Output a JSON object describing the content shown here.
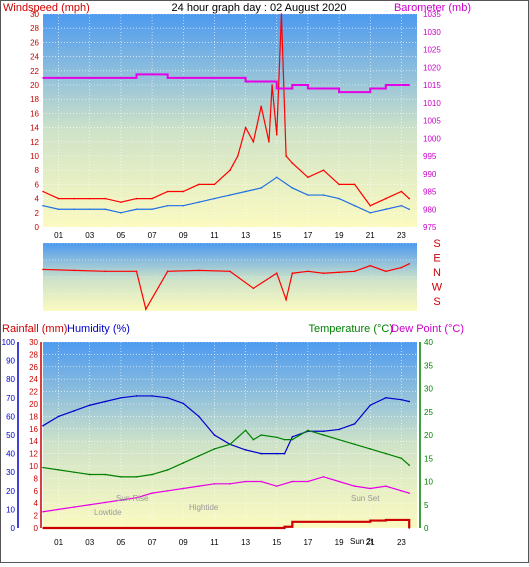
{
  "chart_data": [
    {
      "type": "line",
      "title": "24 hour graph day : 02 August 2020",
      "ylabel_left": "Windspeed (mph)",
      "ylabel_right": "Barometer (mb)",
      "x_ticks": [
        "01",
        "03",
        "05",
        "07",
        "09",
        "11",
        "13",
        "15",
        "17",
        "19",
        "21",
        "23"
      ],
      "xlim": [
        0,
        24
      ],
      "ylim_left": [
        0,
        30
      ],
      "yticks_left": [
        0,
        2,
        4,
        6,
        8,
        10,
        12,
        14,
        16,
        18,
        20,
        22,
        24,
        26,
        28,
        30
      ],
      "ylim_right": [
        975,
        1035
      ],
      "yticks_right": [
        975,
        980,
        985,
        990,
        995,
        1000,
        1005,
        1010,
        1015,
        1020,
        1025,
        1030,
        1035
      ],
      "grid": true,
      "series": [
        {
          "name": "Gust",
          "color": "#ff0000",
          "axis": "left",
          "x": [
            0,
            1,
            2,
            3,
            4,
            5,
            6,
            7,
            8,
            9,
            10,
            11,
            12,
            12.5,
            13,
            13.5,
            14,
            14.5,
            14.7,
            15,
            15.3,
            15.6,
            16,
            17,
            18,
            19,
            20,
            21,
            22,
            23,
            23.5
          ],
          "y": [
            5,
            4,
            4,
            4,
            4,
            3.5,
            4,
            4,
            5,
            5,
            6,
            6,
            8,
            10,
            14,
            12,
            17,
            12,
            20,
            13,
            30,
            10,
            9,
            7,
            8,
            6,
            6,
            3,
            4,
            5,
            4
          ]
        },
        {
          "name": "Average",
          "color": "#1e6fe6",
          "axis": "left",
          "x": [
            0,
            1,
            2,
            3,
            4,
            5,
            6,
            7,
            8,
            9,
            10,
            11,
            12,
            13,
            14,
            15,
            16,
            17,
            18,
            19,
            20,
            21,
            22,
            23,
            23.5
          ],
          "y": [
            3,
            2.5,
            2.5,
            2.5,
            2.5,
            2,
            2.5,
            2.5,
            3,
            3,
            3.5,
            4,
            4.5,
            5,
            5.5,
            7,
            5.5,
            4.5,
            4.5,
            4,
            3,
            2,
            2.5,
            3,
            2.5
          ]
        },
        {
          "name": "Barometer",
          "color": "#e600e6",
          "axis": "right",
          "x": [
            0,
            1,
            2,
            3,
            4,
            5,
            6,
            7,
            8,
            9,
            10,
            11,
            12,
            13,
            14,
            15,
            16,
            17,
            18,
            19,
            20,
            21,
            22,
            23,
            23.5
          ],
          "y": [
            1017,
            1017,
            1017,
            1017,
            1017,
            1017,
            1018,
            1018,
            1017,
            1017,
            1017,
            1017,
            1017,
            1016,
            1016,
            1014,
            1015,
            1014,
            1014,
            1013,
            1013,
            1014,
            1015,
            1015,
            1015
          ]
        }
      ]
    },
    {
      "type": "line",
      "ylabel_right_ticks": [
        "S",
        "E",
        "N",
        "W",
        "S"
      ],
      "xlim": [
        0,
        24
      ],
      "series": [
        {
          "name": "Wind Direction",
          "color": "#ff0000",
          "x": [
            0,
            2,
            4,
            6,
            6.6,
            8,
            10,
            12,
            13.5,
            15,
            15.6,
            16,
            17,
            18,
            19,
            20,
            21,
            22,
            23,
            23.5
          ],
          "y": [
            220,
            215,
            210,
            210,
            10,
            210,
            215,
            210,
            120,
            200,
            60,
            200,
            210,
            200,
            205,
            210,
            240,
            210,
            230,
            250
          ]
        }
      ]
    },
    {
      "type": "line",
      "ylabel_left_outer": "Rainfall (mm)",
      "ylabel_left_inner": "Humidity (%)",
      "ylabel_right": "Temperature (°C)",
      "ylabel_right2": "Dew Point (°C)",
      "x_ticks": [
        "01",
        "03",
        "05",
        "07",
        "09",
        "11",
        "13",
        "15",
        "17",
        "19",
        "21",
        "23"
      ],
      "xlim": [
        0,
        24
      ],
      "ylim_humidity": [
        0,
        100
      ],
      "yticks_humidity": [
        0,
        10,
        20,
        30,
        40,
        50,
        60,
        70,
        80,
        90,
        100
      ],
      "ylim_rain": [
        0,
        30
      ],
      "yticks_rain": [
        0,
        2,
        4,
        6,
        8,
        10,
        12,
        14,
        16,
        18,
        20,
        22,
        24,
        26,
        28,
        30
      ],
      "ylim_temp": [
        0,
        40
      ],
      "yticks_temp": [
        0,
        5,
        10,
        15,
        20,
        25,
        30,
        35,
        40
      ],
      "annotations": [
        "Lowtide",
        "Sun Rise",
        "Hightide",
        "Sun Set",
        "Sun 2t"
      ],
      "series": [
        {
          "name": "Humidity",
          "color": "#0000cc",
          "axis": "humidity",
          "x": [
            0,
            1,
            2,
            3,
            4,
            5,
            6,
            7,
            8,
            9,
            10,
            11,
            12,
            13,
            14,
            15,
            15.5,
            16,
            17,
            18,
            19,
            20,
            21,
            22,
            23,
            23.5
          ],
          "y": [
            55,
            60,
            63,
            66,
            68,
            70,
            71,
            71,
            70,
            67,
            60,
            50,
            45,
            42,
            40,
            40,
            40,
            49,
            52,
            52,
            53,
            56,
            66,
            70,
            69,
            68
          ]
        },
        {
          "name": "Temperature",
          "color": "#008000",
          "axis": "temp",
          "x": [
            0,
            1,
            2,
            3,
            4,
            5,
            6,
            7,
            8,
            9,
            10,
            11,
            12,
            12.5,
            13,
            13.5,
            14,
            15,
            15.5,
            16,
            17,
            18,
            19,
            20,
            21,
            22,
            23,
            23.5
          ],
          "y": [
            13,
            12.5,
            12,
            11.5,
            11.5,
            11,
            11,
            11.5,
            12.5,
            14,
            15.5,
            17,
            18,
            19.5,
            21,
            19,
            20,
            19.5,
            19,
            19,
            21,
            20,
            19,
            18,
            17,
            16,
            15,
            13.5
          ]
        },
        {
          "name": "Dew Point",
          "color": "#e600e6",
          "axis": "temp",
          "x": [
            0,
            1,
            2,
            3,
            4,
            5,
            6,
            7,
            8,
            9,
            10,
            11,
            12,
            13,
            14,
            15,
            16,
            17,
            18,
            19,
            20,
            21,
            22,
            23,
            23.5
          ],
          "y": [
            3.5,
            4,
            4.5,
            5,
            5.5,
            6,
            6.5,
            7.5,
            8,
            8.5,
            9,
            9.5,
            9.5,
            10,
            10,
            9,
            10,
            10,
            11,
            10,
            9,
            8.5,
            9,
            8,
            7.5
          ]
        },
        {
          "name": "Rainfall",
          "color": "#cc0000",
          "axis": "rain",
          "x": [
            0,
            1,
            2,
            3,
            4,
            5,
            6,
            7,
            8,
            9,
            10,
            11,
            12,
            13,
            14,
            15,
            15.5,
            16,
            17,
            18,
            19,
            20,
            21,
            22,
            23,
            23.5
          ],
          "y": [
            0,
            0,
            0,
            0,
            0,
            0,
            0,
            0,
            0,
            0,
            0,
            0,
            0,
            0,
            0,
            0,
            0.2,
            1,
            1,
            1,
            1,
            1,
            1.2,
            1.3,
            1.3,
            0
          ]
        }
      ]
    }
  ]
}
